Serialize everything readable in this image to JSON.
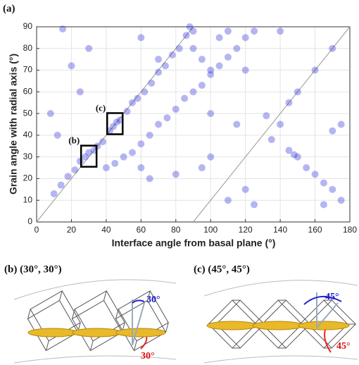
{
  "chart_data": {
    "type": "scatter",
    "title": "(a)",
    "x_label": "Interface angle from basal plane (°)",
    "y_label": "Grain angle with radial axis (°)",
    "x": [
      10,
      14,
      18,
      22,
      25,
      28,
      30,
      33,
      35,
      38,
      42,
      44,
      46,
      48,
      52,
      55,
      58,
      62,
      66,
      70,
      74,
      78,
      82,
      86,
      88,
      90,
      40,
      45,
      50,
      55,
      60,
      65,
      70,
      75,
      80,
      85,
      90,
      95,
      100,
      105,
      110,
      115,
      120,
      125,
      90,
      95,
      100,
      135,
      140,
      145,
      148,
      150,
      155,
      160,
      165,
      170,
      175,
      145,
      150,
      160,
      170,
      140,
      132,
      15,
      20,
      8,
      12,
      25,
      30,
      60,
      65,
      80,
      95,
      100,
      110,
      120,
      125,
      60,
      70,
      105,
      110,
      120,
      170,
      175,
      165,
      115,
      100
    ],
    "values": [
      13,
      17,
      21,
      24,
      28,
      30,
      32,
      33,
      35,
      37,
      42,
      44,
      46,
      47,
      51,
      55,
      57,
      60,
      64,
      69,
      72,
      77,
      80,
      86,
      90,
      88,
      25,
      27,
      30,
      32,
      36,
      40,
      45,
      48,
      52,
      57,
      60,
      63,
      68,
      72,
      76,
      80,
      85,
      88,
      80,
      75,
      70,
      38,
      45,
      33,
      31,
      30,
      25,
      22,
      18,
      15,
      10,
      55,
      60,
      70,
      80,
      88,
      49,
      89,
      72,
      50,
      40,
      60,
      80,
      25,
      20,
      22,
      25,
      30,
      10,
      15,
      8,
      85,
      75,
      85,
      88,
      70,
      42,
      45,
      8,
      45,
      50
    ],
    "color": "#2b2bd9",
    "xlim": [
      0,
      180
    ],
    "ylim": [
      0,
      90
    ],
    "xticks": [
      0,
      20,
      40,
      60,
      80,
      100,
      120,
      140,
      160,
      180
    ],
    "yticks": [
      0,
      10,
      20,
      30,
      40,
      50,
      60,
      70,
      80,
      90
    ],
    "grid": true,
    "reference_lines": [
      {
        "x": [
          0,
          90
        ],
        "y": [
          0,
          90
        ]
      },
      {
        "x": [
          90,
          180
        ],
        "y": [
          0,
          90
        ]
      }
    ],
    "annotations": [
      {
        "text": "(b)",
        "x": 30,
        "y": 30
      },
      {
        "text": "(c)",
        "x": 45,
        "y": 45
      }
    ]
  },
  "panels": [
    {
      "label": "(b) (30°, 30°)",
      "angles": [
        "30°",
        "30°"
      ]
    },
    {
      "label": "(c) (45°, 45°)",
      "angles": [
        "45°",
        "45°"
      ]
    }
  ]
}
